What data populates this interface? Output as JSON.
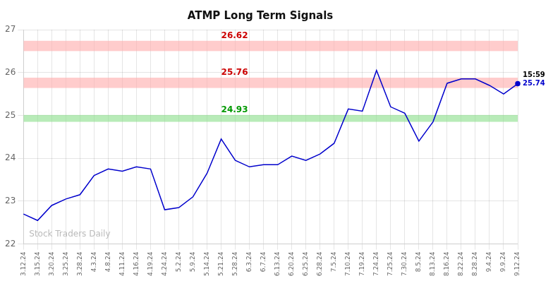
{
  "chart_data": {
    "type": "line",
    "title": "ATMP Long Term Signals",
    "categories": [
      "3.12.24",
      "3.15.24",
      "3.20.24",
      "3.25.24",
      "3.28.24",
      "4.3.24",
      "4.8.24",
      "4.11.24",
      "4.16.24",
      "4.19.24",
      "4.24.24",
      "5.2.24",
      "5.9.24",
      "5.14.24",
      "5.21.24",
      "5.28.24",
      "6.3.24",
      "6.7.24",
      "6.13.24",
      "6.20.24",
      "6.25.24",
      "6.28.24",
      "7.5.24",
      "7.10.24",
      "7.19.24",
      "7.24.24",
      "7.25.24",
      "7.30.24",
      "8.5.24",
      "8.13.24",
      "8.16.24",
      "8.22.24",
      "8.28.24",
      "9.4.24",
      "9.9.24",
      "9.12.24"
    ],
    "values": [
      22.7,
      22.55,
      22.9,
      23.05,
      23.15,
      23.6,
      23.75,
      23.7,
      23.8,
      23.75,
      22.8,
      22.85,
      23.1,
      23.65,
      24.45,
      23.95,
      23.8,
      23.85,
      23.85,
      24.05,
      23.95,
      24.1,
      24.35,
      25.15,
      25.1,
      26.05,
      25.2,
      25.05,
      24.4,
      24.85,
      25.75,
      25.85,
      25.85,
      25.7,
      25.5,
      25.74
    ],
    "color": "#0000cc",
    "ylim": [
      22,
      27
    ],
    "yticks": [
      22,
      23,
      24,
      25,
      26,
      27
    ],
    "grid": true,
    "bands": [
      {
        "value": 26.62,
        "band": 0.12,
        "color": "#ffaaaa",
        "label": "26.62",
        "label_color": "#cc0000"
      },
      {
        "value": 25.76,
        "band": 0.12,
        "color": "#ffaaaa",
        "label": "25.76",
        "label_color": "#cc0000"
      },
      {
        "value": 24.93,
        "band": 0.08,
        "color": "#88dd88",
        "label": "24.93",
        "label_color": "#009900"
      }
    ],
    "annotations": [
      {
        "text": "15:59",
        "color": "#000000"
      },
      {
        "text": "25.74",
        "color": "#0000cc"
      }
    ],
    "watermark": {
      "text": "Stock Traders Daily",
      "color": "#bbbbbb"
    }
  }
}
